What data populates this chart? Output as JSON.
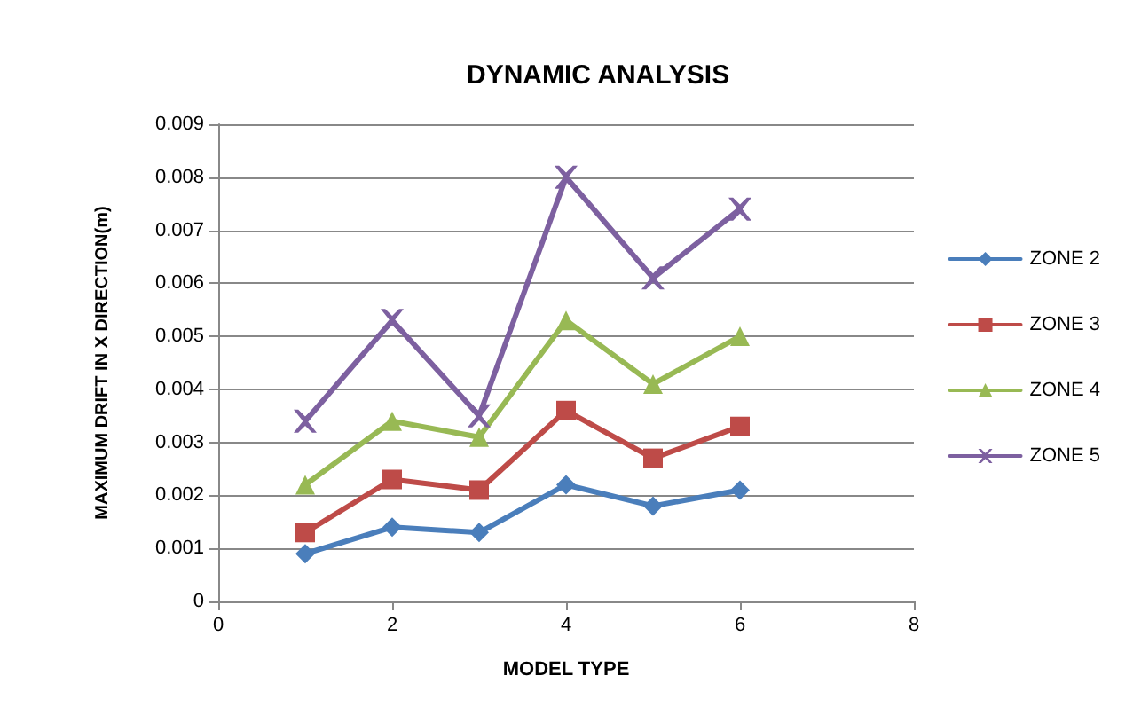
{
  "chart_data": {
    "type": "line",
    "title": "DYNAMIC ANALYSIS",
    "xlabel": "MODEL TYPE",
    "ylabel": "MAXIMUM DRIFT IN X DIRECTION(m)",
    "x": [
      1,
      2,
      3,
      4,
      5,
      6
    ],
    "series": [
      {
        "name": "ZONE 2",
        "color": "#4a7ebb",
        "marker": "diamond",
        "values": [
          0.0009,
          0.0014,
          0.0013,
          0.0022,
          0.0018,
          0.0021
        ]
      },
      {
        "name": "ZONE 3",
        "color": "#be4b48",
        "marker": "square",
        "values": [
          0.0013,
          0.0023,
          0.0021,
          0.0036,
          0.0027,
          0.0033
        ]
      },
      {
        "name": "ZONE 4",
        "color": "#98b954",
        "marker": "triangle",
        "values": [
          0.0022,
          0.0034,
          0.0031,
          0.0053,
          0.0041,
          0.005
        ]
      },
      {
        "name": "ZONE 5",
        "color": "#7d60a0",
        "marker": "cross",
        "values": [
          0.0034,
          0.0053,
          0.0035,
          0.008,
          0.0061,
          0.0074
        ]
      }
    ],
    "xlim": [
      0,
      8
    ],
    "xticks": [
      0,
      2,
      4,
      6,
      8
    ],
    "ylim": [
      0,
      0.009
    ],
    "yticks": [
      0,
      0.001,
      0.002,
      0.003,
      0.004,
      0.005,
      0.006,
      0.007,
      0.008,
      0.009
    ],
    "grid": "y",
    "legend": "right",
    "line_style": "solid"
  }
}
